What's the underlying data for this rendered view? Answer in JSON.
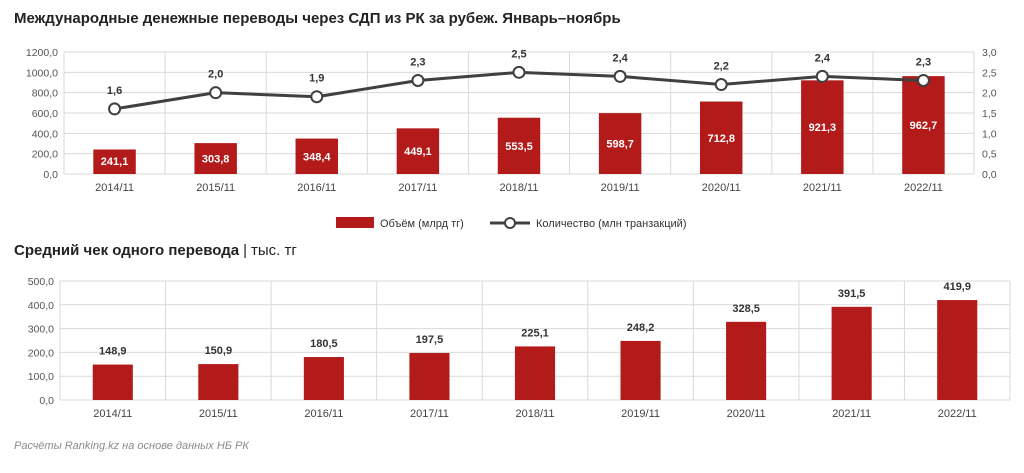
{
  "header": {
    "title": "Международные денежные переводы через СДП из РК за рубеж. Январь–ноябрь",
    "subtitle_bold": "Средний чек одного перевода",
    "subtitle_sep": "|",
    "subtitle_unit": "тыс. тг"
  },
  "footer": {
    "source": "Расчёты Ranking.kz на основе данных НБ РК"
  },
  "colors": {
    "bar": "#B31B1B",
    "line": "#404040",
    "grid": "#d9d9d9",
    "marker_fill": "#ffffff"
  },
  "chart_data": [
    {
      "type": "bar+line",
      "title": "Международные денежные переводы через СДП из РК за рубеж. Январь–ноябрь",
      "categories": [
        "2014/11",
        "2015/11",
        "2016/11",
        "2017/11",
        "2018/11",
        "2019/11",
        "2020/11",
        "2021/11",
        "2022/11"
      ],
      "series": [
        {
          "name": "Объём (млрд тг)",
          "type": "bar",
          "axis": "left",
          "values": [
            241.1,
            303.8,
            348.4,
            449.1,
            553.5,
            598.7,
            712.8,
            921.3,
            962.7
          ],
          "labels": [
            "241,1",
            "303,8",
            "348,4",
            "449,1",
            "553,5",
            "598,7",
            "712,8",
            "921,3",
            "962,7"
          ]
        },
        {
          "name": "Количество (млн транзакций)",
          "type": "line",
          "axis": "right",
          "values": [
            1.6,
            2.0,
            1.9,
            2.3,
            2.5,
            2.4,
            2.2,
            2.4,
            2.3
          ],
          "labels": [
            "1,6",
            "2,0",
            "1,9",
            "2,3",
            "2,5",
            "2,4",
            "2,2",
            "2,4",
            "2,3"
          ]
        }
      ],
      "y_left": {
        "min": 0,
        "max": 1200,
        "ticks": [
          "0,0",
          "200,0",
          "400,0",
          "600,0",
          "800,0",
          "1000,0",
          "1200,0"
        ]
      },
      "y_right": {
        "min": 0,
        "max": 3.0,
        "ticks": [
          "0,0",
          "0,5",
          "1,0",
          "1,5",
          "2,0",
          "2,5",
          "3,0"
        ]
      },
      "grid": true,
      "legend": "bottom"
    },
    {
      "type": "bar",
      "title": "Средний чек одного перевода | тыс. тг",
      "categories": [
        "2014/11",
        "2015/11",
        "2016/11",
        "2017/11",
        "2018/11",
        "2019/11",
        "2020/11",
        "2021/11",
        "2022/11"
      ],
      "values": [
        148.9,
        150.9,
        180.5,
        197.5,
        225.1,
        248.2,
        328.5,
        391.5,
        419.9
      ],
      "labels": [
        "148,9",
        "150,9",
        "180,5",
        "197,5",
        "225,1",
        "248,2",
        "328,5",
        "391,5",
        "419,9"
      ],
      "y": {
        "min": 0,
        "max": 500,
        "ticks": [
          "0,0",
          "100,0",
          "200,0",
          "300,0",
          "400,0",
          "500,0"
        ]
      },
      "grid": true
    }
  ]
}
